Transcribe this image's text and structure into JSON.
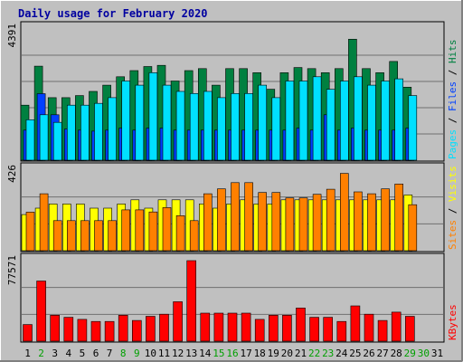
{
  "chart_data": {
    "type": "bar",
    "title": "Daily usage for February 2020",
    "categories": [
      "1",
      "2",
      "3",
      "4",
      "5",
      "6",
      "7",
      "8",
      "9",
      "10",
      "11",
      "12",
      "13",
      "14",
      "15",
      "16",
      "17",
      "18",
      "19",
      "20",
      "21",
      "22",
      "23",
      "24",
      "25",
      "26",
      "27",
      "28",
      "29",
      "30",
      "31"
    ],
    "weekend_days": [
      2,
      8,
      9,
      15,
      16,
      22,
      23,
      29,
      30
    ],
    "panels": [
      {
        "id": "hits",
        "ylabel_max": "4391",
        "ymax": 4391,
        "right_labels": [
          {
            "text": "Hits",
            "color": "#008040"
          },
          {
            "text": "Files",
            "color": "#0040ff"
          },
          {
            "text": "Pages",
            "color": "#00e0ff"
          }
        ],
        "series": [
          {
            "name": "Hits",
            "color": "#008040",
            "values": [
              1842,
              3145,
              2092,
              2092,
              2162,
              2302,
              2510,
              2791,
              2998,
              3135,
              3175,
              2651,
              2999,
              3065,
              2510,
              3065,
              3065,
              2929,
              2374,
              2929,
              3100,
              3065,
              2929,
              3065,
              4050,
              3065,
              2929,
              3305,
              2445,
              null,
              null
            ]
          },
          {
            "name": "Files",
            "color": "#0040ff",
            "values": [
              1005,
              2225,
              1520,
              1043,
              1005,
              971,
              1005,
              1075,
              1005,
              1075,
              1075,
              1005,
              1005,
              1005,
              1005,
              1005,
              1005,
              1005,
              1005,
              1005,
              1075,
              1005,
              1520,
              1005,
              1075,
              1005,
              1005,
              1005,
              1075,
              null,
              null
            ]
          },
          {
            "name": "Pages",
            "color": "#00e0ff",
            "values": [
              1355,
              1520,
              1267,
              1842,
              1842,
              1903,
              2092,
              2651,
              2510,
              2929,
              2510,
              2302,
              2232,
              2302,
              2092,
              2232,
              2232,
              2510,
              2092,
              2651,
              2651,
              2791,
              2372,
              2651,
              2791,
              2510,
              2651,
              2721,
              2162,
              null,
              null
            ]
          }
        ]
      },
      {
        "id": "visits",
        "ylabel_max": "426",
        "ymax": 426,
        "right_labels": [
          {
            "text": "Visits",
            "color": "#ffff00"
          },
          {
            "text": "Sites",
            "color": "#ff8000"
          }
        ],
        "series": [
          {
            "name": "Visits",
            "color": "#ffff00",
            "values": [
              191,
              225,
              247,
              247,
              247,
              225,
              225,
              247,
              269,
              225,
              269,
              269,
              269,
              247,
              225,
              247,
              269,
              247,
              247,
              269,
              269,
              269,
              269,
              269,
              269,
              269,
              269,
              269,
              295,
              null,
              null
            ]
          },
          {
            "name": "Sites",
            "color": "#ff8000",
            "values": [
              204,
              301,
              159,
              159,
              159,
              159,
              159,
              216,
              216,
              205,
              228,
              185,
              159,
              301,
              327,
              360,
              360,
              308,
              308,
              279,
              279,
              298,
              325,
              409,
              311,
              301,
              327,
              353,
              243,
              null,
              null
            ]
          }
        ]
      },
      {
        "id": "kbytes",
        "ylabel_max": "77571",
        "ymax": 77571,
        "right_labels": [
          {
            "text": "KBytes",
            "color": "#ff0000"
          }
        ],
        "series": [
          {
            "name": "KBytes",
            "color": "#ff0000",
            "values": [
              16000,
              58000,
              25000,
              23000,
              21000,
              19000,
              19000,
              25000,
              20000,
              24000,
              26000,
              38000,
              77571,
              27000,
              27000,
              27000,
              27000,
              21000,
              25000,
              25000,
              32000,
              23000,
              23000,
              19000,
              34000,
              26000,
              20000,
              28000,
              24000,
              null,
              null
            ]
          }
        ]
      }
    ]
  }
}
